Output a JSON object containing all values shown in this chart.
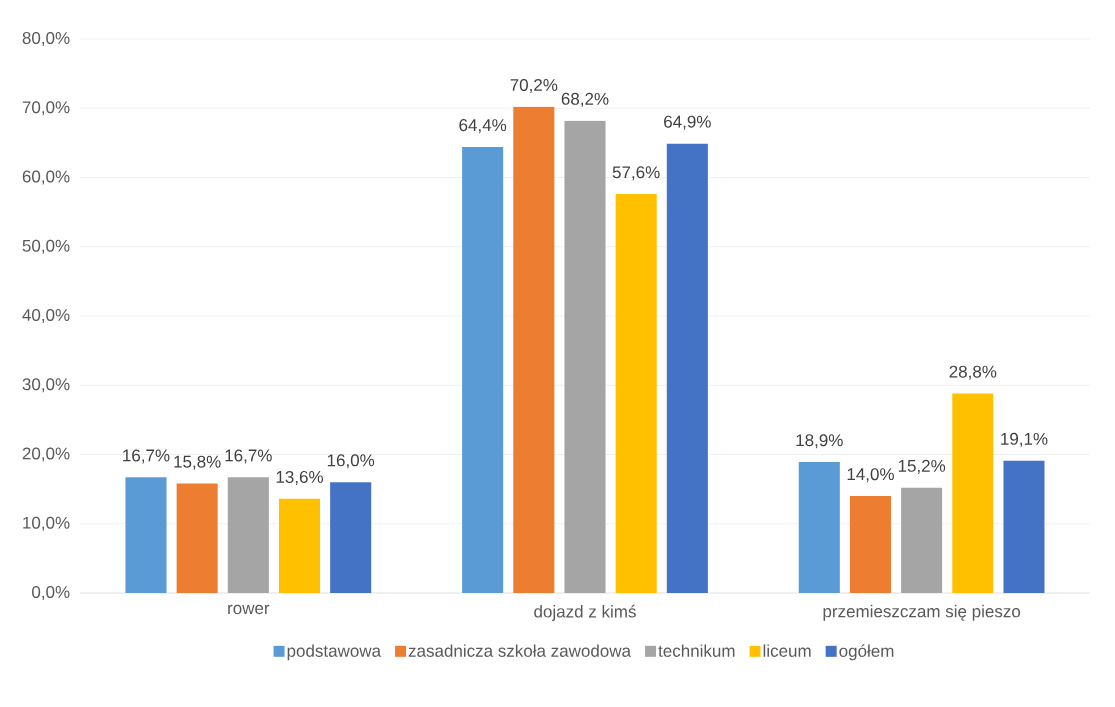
{
  "chart_data": {
    "type": "bar",
    "categories": [
      "rower",
      "dojazd z kimś",
      "przemieszczam się pieszo"
    ],
    "series": [
      {
        "name": "podstawowa",
        "color": "#5b9bd5",
        "values": [
          16.7,
          64.4,
          18.9
        ],
        "value_labels": [
          "16,7%",
          "64,4%",
          "18,9%"
        ]
      },
      {
        "name": "zasadnicza szkoła zawodowa",
        "color": "#ed7d31",
        "values": [
          15.8,
          70.2,
          14.0
        ],
        "value_labels": [
          "15,8%",
          "70,2%",
          "14,0%"
        ]
      },
      {
        "name": "technikum",
        "color": "#a5a5a5",
        "values": [
          16.7,
          68.2,
          15.2
        ],
        "value_labels": [
          "16,7%",
          "68,2%",
          "15,2%"
        ]
      },
      {
        "name": "liceum",
        "color": "#ffc000",
        "values": [
          13.6,
          57.6,
          28.8
        ],
        "value_labels": [
          "13,6%",
          "57,6%",
          "28,8%"
        ]
      },
      {
        "name": "ogółem",
        "color": "#4472c4",
        "values": [
          16.0,
          64.9,
          19.1
        ],
        "value_labels": [
          "16,0%",
          "64,9%",
          "19,1%"
        ]
      }
    ],
    "ylim": [
      0,
      80
    ],
    "yticks": [
      {
        "value": 0,
        "label": "0,0%"
      },
      {
        "value": 10,
        "label": "10,0%"
      },
      {
        "value": 20,
        "label": "20,0%"
      },
      {
        "value": 30,
        "label": "30,0%"
      },
      {
        "value": 40,
        "label": "40,0%"
      },
      {
        "value": 50,
        "label": "50,0%"
      },
      {
        "value": 60,
        "label": "60,0%"
      },
      {
        "value": 70,
        "label": "70,0%"
      },
      {
        "value": 80,
        "label": "80,0%"
      }
    ],
    "grid": "y",
    "legend": "bottom"
  }
}
